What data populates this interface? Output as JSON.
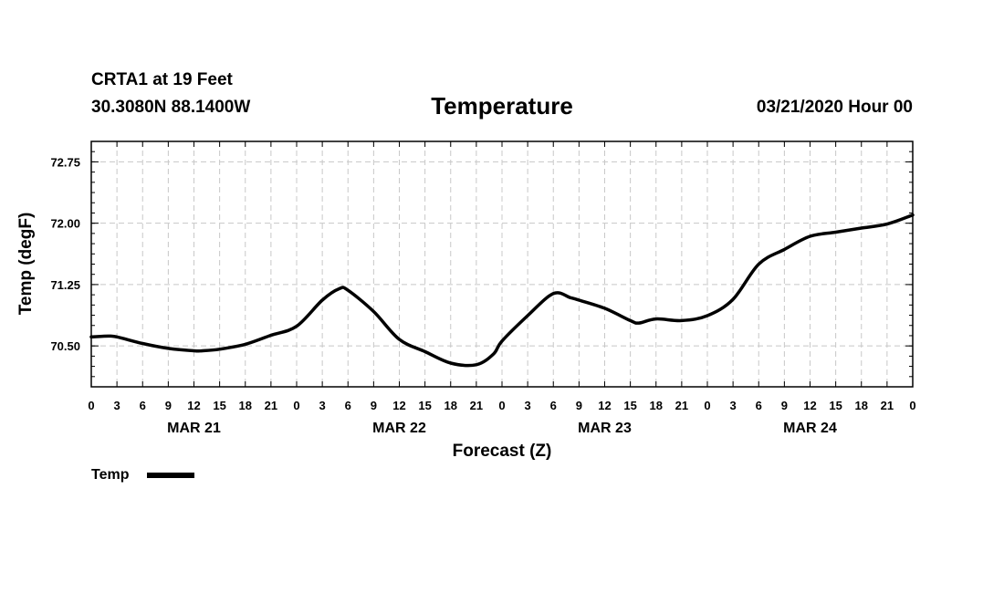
{
  "header": {
    "station": "CRTA1 at 19 Feet",
    "coords": "30.3080N 88.1400W",
    "run_time": "03/21/2020 Hour 00"
  },
  "chart_data": {
    "type": "line",
    "title": "Temperature",
    "xlabel": "Forecast (Z)",
    "ylabel": "Temp (degF)",
    "ylim": [
      70.0,
      73.0
    ],
    "xlim": [
      0,
      96
    ],
    "y_ticks": [
      70.5,
      71.25,
      72.0,
      72.75
    ],
    "y_tick_labels": [
      "70.50",
      "71.25",
      "72.00",
      "72.75"
    ],
    "x_tick_hours": [
      0,
      3,
      6,
      9,
      12,
      15,
      18,
      21,
      24,
      27,
      30,
      33,
      36,
      39,
      42,
      45,
      48,
      51,
      54,
      57,
      60,
      63,
      66,
      69,
      72,
      75,
      78,
      81,
      84,
      87,
      90,
      93,
      96
    ],
    "x_tick_labels": [
      "0",
      "3",
      "6",
      "9",
      "12",
      "15",
      "18",
      "21",
      "0",
      "3",
      "6",
      "9",
      "12",
      "15",
      "18",
      "21",
      "0",
      "3",
      "6",
      "9",
      "12",
      "15",
      "18",
      "21",
      "0",
      "3",
      "6",
      "9",
      "12",
      "15",
      "18",
      "21",
      "0"
    ],
    "date_labels": [
      {
        "label": "MAR 21",
        "hour": 12
      },
      {
        "label": "MAR 22",
        "hour": 36
      },
      {
        "label": "MAR 23",
        "hour": 60
      },
      {
        "label": "MAR 24",
        "hour": 84
      }
    ],
    "grid": true,
    "legend": [
      {
        "label": "Temp",
        "color": "#000000"
      }
    ],
    "series": [
      {
        "name": "Temp",
        "color": "#000000",
        "x": [
          0,
          2,
          3,
          6,
          9,
          12,
          13,
          15,
          18,
          21,
          24,
          27,
          29,
          30,
          33,
          36,
          39,
          42,
          45,
          47,
          48,
          51,
          54,
          56,
          57,
          60,
          63,
          64,
          66,
          69,
          72,
          75,
          78,
          81,
          84,
          87,
          90,
          93,
          96
        ],
        "y": [
          70.61,
          70.62,
          70.61,
          70.53,
          70.47,
          70.44,
          70.44,
          70.46,
          70.52,
          70.63,
          70.74,
          71.06,
          71.2,
          71.18,
          70.92,
          70.58,
          70.43,
          70.29,
          70.27,
          70.4,
          70.56,
          70.87,
          71.14,
          71.09,
          71.06,
          70.96,
          70.81,
          70.78,
          70.83,
          70.81,
          70.87,
          71.07,
          71.5,
          71.68,
          71.84,
          71.89,
          71.94,
          71.99,
          72.1
        ]
      }
    ]
  }
}
